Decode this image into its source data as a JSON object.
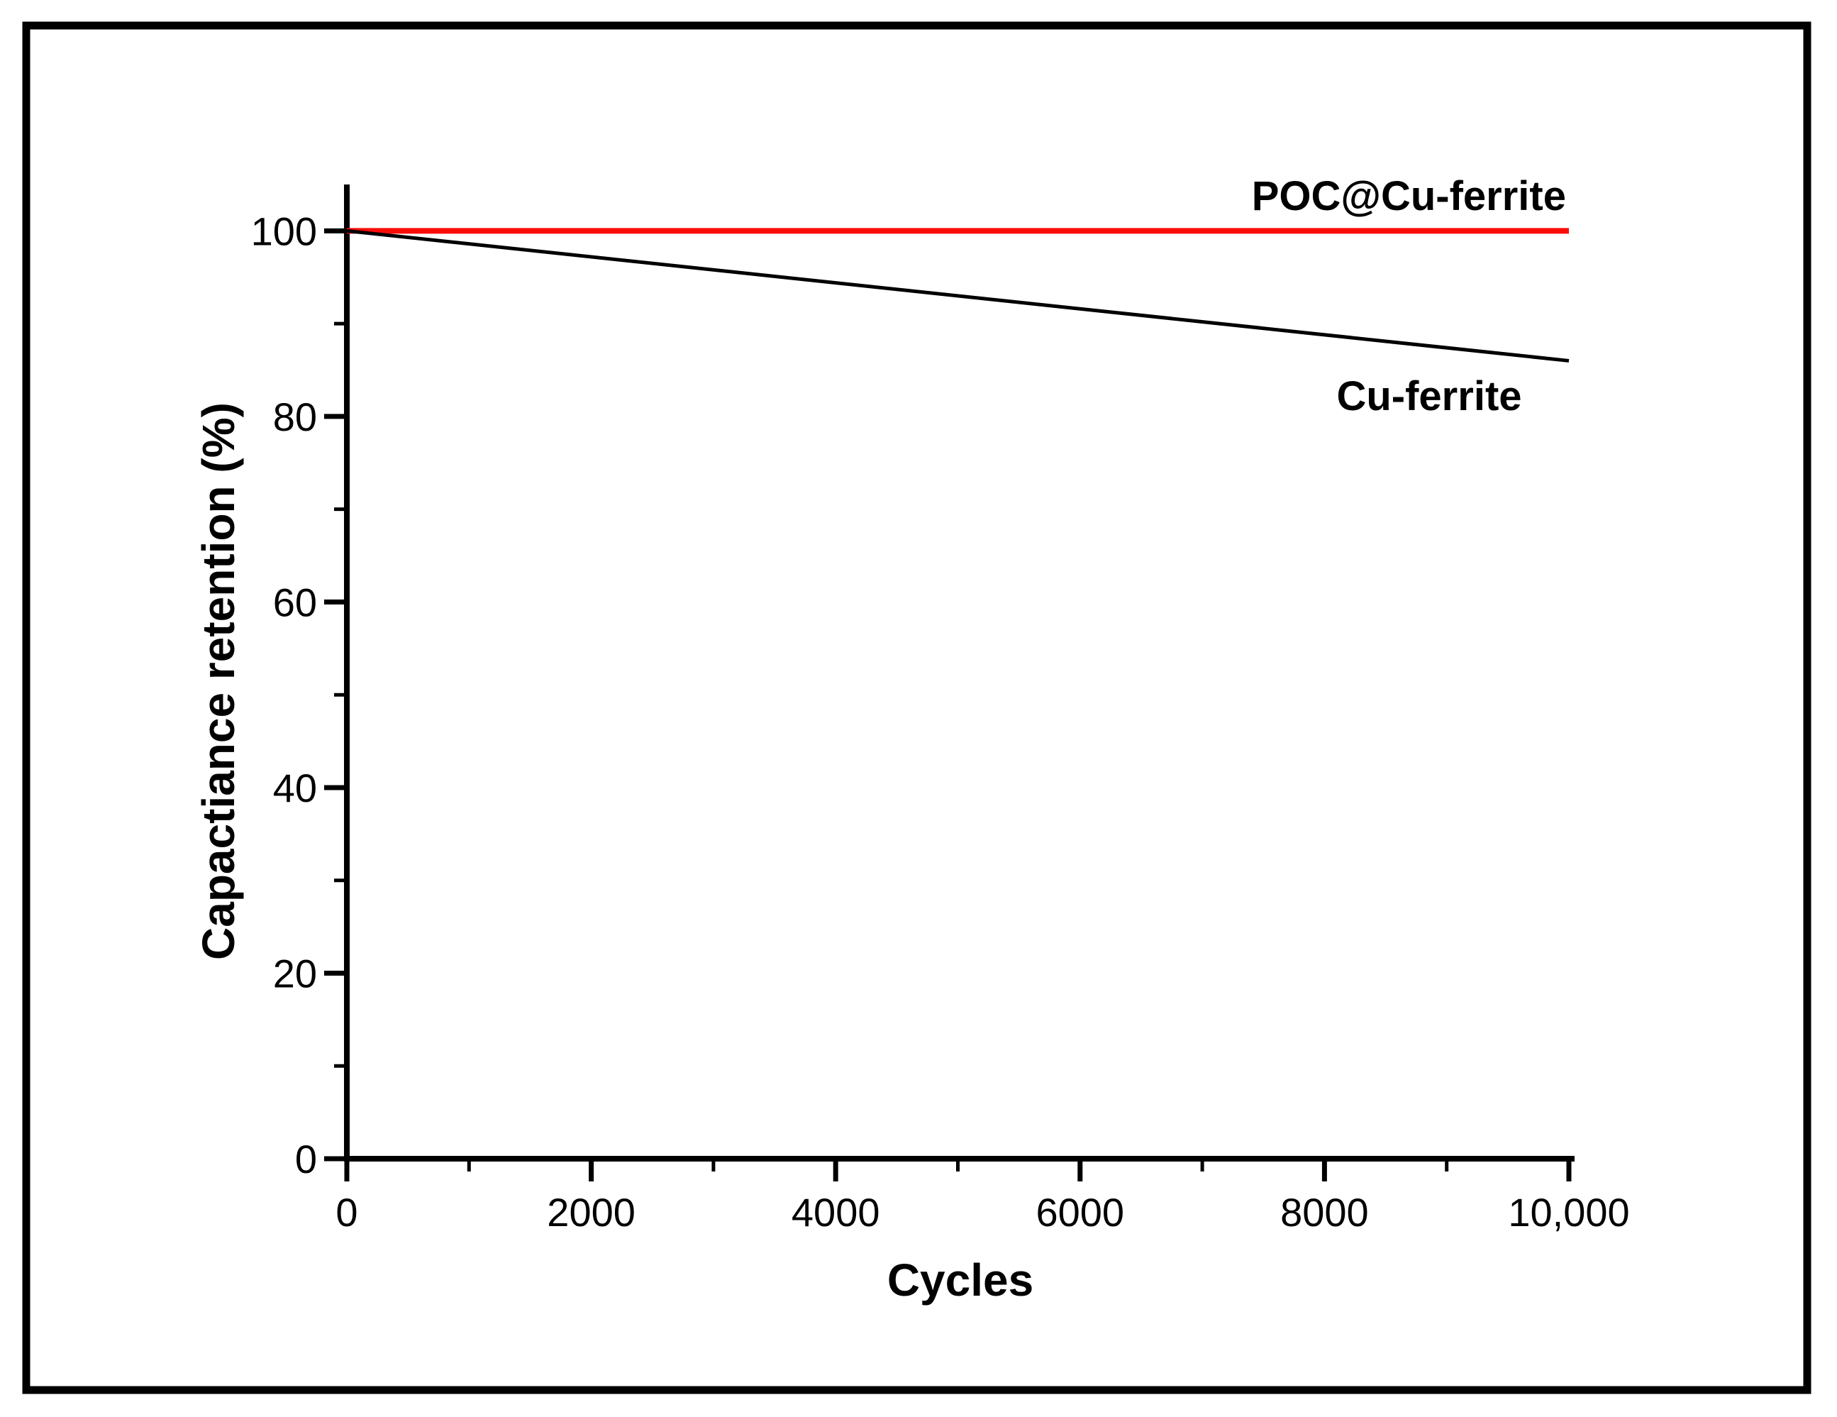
{
  "figure": {
    "frame_color": "#000000",
    "background_color": "#ffffff"
  },
  "chart_data": {
    "type": "line",
    "title": "",
    "xlabel": "Cycles",
    "ylabel": "Capactiance retention (%)",
    "xlim": [
      0,
      10000
    ],
    "ylim": [
      0,
      105
    ],
    "grid": false,
    "legend_position": "inline-annotations",
    "x_ticks": [
      0,
      2000,
      4000,
      6000,
      8000,
      10000
    ],
    "x_tick_labels": [
      "0",
      "2000",
      "4000",
      "6000",
      "8000",
      "10,000"
    ],
    "x_minor_ticks": [
      1000,
      3000,
      5000,
      7000,
      9000
    ],
    "y_ticks": [
      0,
      20,
      40,
      60,
      80,
      100
    ],
    "y_tick_labels": [
      "0",
      "20",
      "40",
      "60",
      "80",
      "100"
    ],
    "y_minor_ticks": [
      10,
      30,
      50,
      70,
      90
    ],
    "axis_color": "#000000",
    "series": [
      {
        "name": "POC@Cu-ferrite",
        "color": "#fa0d09",
        "x": [
          0,
          10000
        ],
        "y": [
          100,
          100
        ]
      },
      {
        "name": "Cu-ferrite",
        "color": "#000000",
        "x": [
          0,
          10000
        ],
        "y": [
          100,
          86
        ]
      }
    ]
  }
}
